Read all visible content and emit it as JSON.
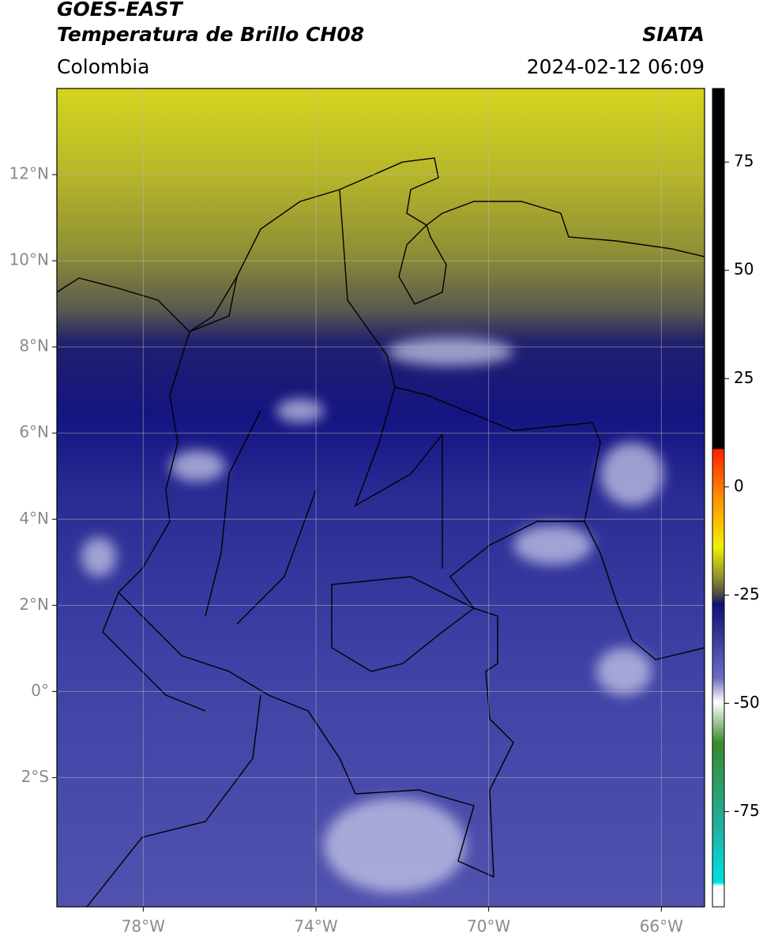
{
  "header": {
    "title": "GOES-EAST",
    "subtitle": "Temperatura de Brillo CH08",
    "source": "SIATA",
    "region": "Colombia",
    "datetime": "2024-02-12 06:09"
  },
  "map": {
    "lonlim": [
      -80,
      -65
    ],
    "latlim": [
      -5,
      14
    ],
    "lonticks": [
      {
        "value": -78,
        "label": "78°W"
      },
      {
        "value": -74,
        "label": "74°W"
      },
      {
        "value": -70,
        "label": "70°W"
      },
      {
        "value": -66,
        "label": "66°W"
      }
    ],
    "latticks": [
      {
        "value": 12,
        "label": "12°N"
      },
      {
        "value": 10,
        "label": "10°N"
      },
      {
        "value": 8,
        "label": "8°N"
      },
      {
        "value": 6,
        "label": "6°N"
      },
      {
        "value": 4,
        "label": "4°N"
      },
      {
        "value": 2,
        "label": "2°N"
      },
      {
        "value": 0,
        "label": "0°"
      },
      {
        "value": -2,
        "label": "2°S"
      }
    ],
    "grid": true
  },
  "colorbar": {
    "lim": [
      -97,
      92
    ],
    "ticks": [
      75,
      50,
      25,
      0,
      -25,
      -50,
      -75
    ]
  }
}
